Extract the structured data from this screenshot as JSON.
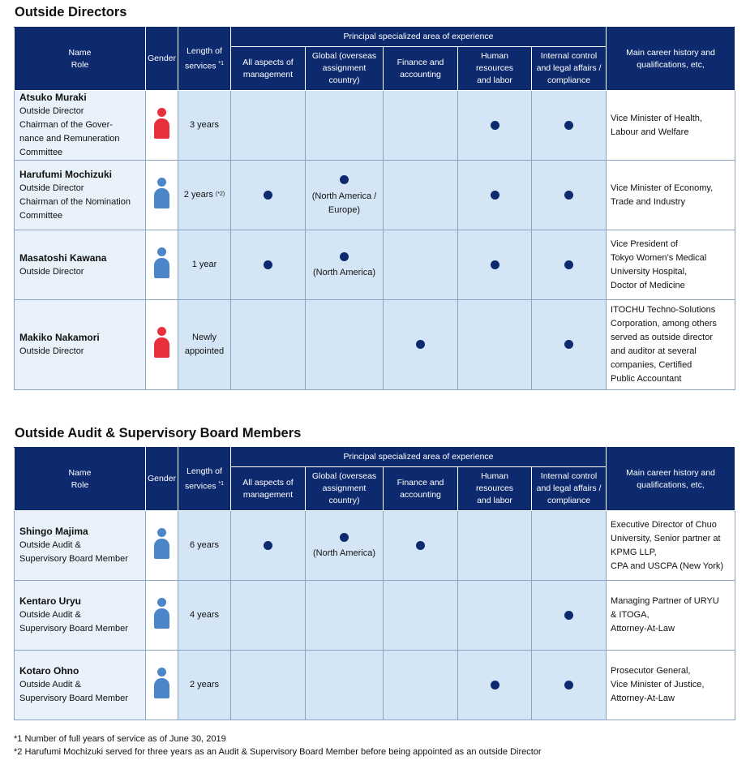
{
  "colors": {
    "header_bg": "#0e2a6e",
    "name_bg": "#e9f1fa",
    "cell_bg": "#d4e6f6",
    "dot": "#0e2a6e",
    "male_icon": "#4b87c8",
    "female_icon": "#e8303d"
  },
  "headers": {
    "name": "Name",
    "role": "Role",
    "gender": "Gender",
    "length": "Length of\nservices",
    "length_note": "*1",
    "experience_group": "Principal specialized area of experience",
    "experience": [
      "All aspects of\nmanagement",
      "Global (overseas\nassignment\ncountry)",
      "Finance and\naccounting",
      "Human\nresources\nand labor",
      "Internal control\nand legal affairs /\ncompliance"
    ],
    "career": "Main career history and\nqualifications, etc,"
  },
  "directors": {
    "title": "Outside Directors",
    "rows": [
      {
        "name": "Atsuko Muraki",
        "role": "Outside Director\nChairman of the Gover-\nnance and Remuneration\nCommittee",
        "gender": "female",
        "gender_icon": "female-person-icon",
        "length": "3 years",
        "length_note": "",
        "exp": [
          false,
          false,
          false,
          true,
          true
        ],
        "global_note": "",
        "career": "Vice Minister of Health,\nLabour and Welfare"
      },
      {
        "name": "Harufumi Mochizuki",
        "role": "Outside Director\nChairman of the Nomination\nCommittee",
        "gender": "male",
        "gender_icon": "male-person-icon",
        "length": "2 years",
        "length_note": "(*2)",
        "exp": [
          true,
          true,
          false,
          true,
          true
        ],
        "global_note": "(North America /\nEurope)",
        "career": "Vice Minister of Economy,\nTrade and Industry"
      },
      {
        "name": "Masatoshi Kawana",
        "role": "Outside Director",
        "gender": "male",
        "gender_icon": "male-person-icon",
        "length": "1 year",
        "length_note": "",
        "exp": [
          true,
          true,
          false,
          true,
          true
        ],
        "global_note": "(North America)",
        "career": "Vice President of\nTokyo Women’s Medical\nUniversity Hospital,\nDoctor of Medicine"
      },
      {
        "name": "Makiko Nakamori",
        "role": "Outside Director",
        "gender": "female",
        "gender_icon": "female-person-icon",
        "length": "Newly\nappointed",
        "length_note": "",
        "exp": [
          false,
          false,
          true,
          false,
          true
        ],
        "global_note": "",
        "career": "ITOCHU Techno-Solutions\nCorporation, among others\nserved as outside director\nand auditor at several\ncompanies, Certified\nPublic Accountant"
      }
    ]
  },
  "auditors": {
    "title": "Outside Audit & Supervisory Board Members",
    "rows": [
      {
        "name": "Shingo Majima",
        "role": "Outside Audit &\nSupervisory Board Member",
        "gender": "male",
        "gender_icon": "male-person-icon",
        "length": "6 years",
        "length_note": "",
        "exp": [
          true,
          true,
          true,
          false,
          false
        ],
        "global_note": "(North America)",
        "career": "Executive Director of Chuo\nUniversity, Senior partner at\nKPMG LLP,\nCPA and USCPA (New York)"
      },
      {
        "name": "Kentaro Uryu",
        "role": "Outside Audit &\nSupervisory Board Member",
        "gender": "male",
        "gender_icon": "male-person-icon",
        "length": "4 years",
        "length_note": "",
        "exp": [
          false,
          false,
          false,
          false,
          true
        ],
        "global_note": "",
        "career": "Managing Partner of URYU\n& ITOGA,\nAttorney-At-Law"
      },
      {
        "name": "Kotaro Ohno",
        "role": "Outside Audit &\nSupervisory Board Member",
        "gender": "male",
        "gender_icon": "male-person-icon",
        "length": "2 years",
        "length_note": "",
        "exp": [
          false,
          false,
          false,
          true,
          true
        ],
        "global_note": "",
        "career": "Prosecutor General,\nVice Minister of Justice,\nAttorney-At-Law"
      }
    ]
  },
  "footnotes": [
    "*1 Number of full years of service as of June 30, 2019",
    "*2 Harufumi Mochizuki served for three years as an Audit & Supervisory Board Member before being appointed as an outside Director"
  ]
}
